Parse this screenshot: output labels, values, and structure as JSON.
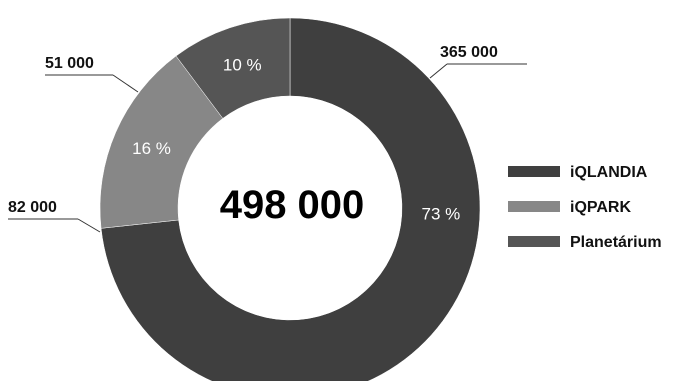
{
  "chart_data": {
    "type": "pie",
    "donut": true,
    "categories": [
      "iQLANDIA",
      "iQPARK",
      "Planetárium"
    ],
    "values": [
      365000,
      82000,
      51000
    ],
    "value_labels": [
      "365 000",
      "82 000",
      "51 000"
    ],
    "percent_labels": [
      "73 %",
      "16 %",
      "10 %"
    ],
    "center_label": "498 000",
    "colors": [
      "#3f3f3f",
      "#878787",
      "#555555"
    ],
    "legend_position": "right"
  }
}
